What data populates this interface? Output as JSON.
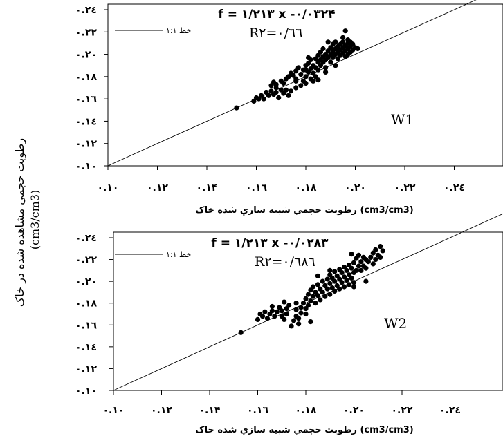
{
  "y_label": "رطوبت حجمي مشاهده شده در خاک",
  "y_unit": "(cm3/cm3)",
  "chart_data": [
    {
      "type": "scatter",
      "panel": "W1",
      "equation": "f = ۱/۲۱۳ x -۰/۰۳۲۴",
      "r2": "R۲=۰/٦٦",
      "legend": "خط ۱:۱",
      "xlabel": "رطوبت حجمي شبيه سازي شده خاک (cm3/cm3)",
      "x_ticks": [
        "۰.۱۰",
        "۰.۱۲",
        "۰.۱۴",
        "۰.۱٦",
        "۰.۱۸",
        "۰.۲۰",
        "۰.۲۲",
        "۰.۲٤"
      ],
      "y_ticks": [
        "۰.۱۰",
        "۰.۱۲",
        "۰.۱٤",
        "۰.۱٦",
        "۰.۱۸",
        "۰.۲۰",
        "۰.۲۲",
        "۰.۲٤"
      ],
      "xlim": [
        0.1,
        0.245
      ],
      "ylim": [
        0.1,
        0.245
      ],
      "one_to_one_line": true,
      "points": [
        [
          0.152,
          0.152
        ],
        [
          0.159,
          0.158
        ],
        [
          0.16,
          0.161
        ],
        [
          0.161,
          0.16
        ],
        [
          0.162,
          0.163
        ],
        [
          0.163,
          0.16
        ],
        [
          0.164,
          0.166
        ],
        [
          0.165,
          0.163
        ],
        [
          0.166,
          0.167
        ],
        [
          0.167,
          0.164
        ],
        [
          0.168,
          0.17
        ],
        [
          0.168,
          0.166
        ],
        [
          0.169,
          0.161
        ],
        [
          0.17,
          0.168
        ],
        [
          0.171,
          0.165
        ],
        [
          0.172,
          0.168
        ],
        [
          0.166,
          0.172
        ],
        [
          0.167,
          0.175
        ],
        [
          0.168,
          0.173
        ],
        [
          0.17,
          0.176
        ],
        [
          0.171,
          0.174
        ],
        [
          0.172,
          0.178
        ],
        [
          0.173,
          0.18
        ],
        [
          0.174,
          0.183
        ],
        [
          0.175,
          0.181
        ],
        [
          0.176,
          0.185
        ],
        [
          0.176,
          0.178
        ],
        [
          0.177,
          0.188
        ],
        [
          0.178,
          0.172
        ],
        [
          0.178,
          0.182
        ],
        [
          0.179,
          0.186
        ],
        [
          0.179,
          0.176
        ],
        [
          0.18,
          0.19
        ],
        [
          0.18,
          0.18
        ],
        [
          0.18,
          0.174
        ],
        [
          0.181,
          0.184
        ],
        [
          0.181,
          0.192
        ],
        [
          0.182,
          0.187
        ],
        [
          0.182,
          0.178
        ],
        [
          0.182,
          0.195
        ],
        [
          0.183,
          0.19
        ],
        [
          0.183,
          0.183
        ],
        [
          0.184,
          0.196
        ],
        [
          0.184,
          0.188
        ],
        [
          0.184,
          0.18
        ],
        [
          0.185,
          0.193
        ],
        [
          0.185,
          0.199
        ],
        [
          0.185,
          0.186
        ],
        [
          0.186,
          0.195
        ],
        [
          0.186,
          0.202
        ],
        [
          0.186,
          0.19
        ],
        [
          0.187,
          0.198
        ],
        [
          0.187,
          0.193
        ],
        [
          0.187,
          0.205
        ],
        [
          0.188,
          0.2
        ],
        [
          0.188,
          0.195
        ],
        [
          0.188,
          0.188
        ],
        [
          0.189,
          0.203
        ],
        [
          0.189,
          0.197
        ],
        [
          0.19,
          0.206
        ],
        [
          0.19,
          0.2
        ],
        [
          0.19,
          0.193
        ],
        [
          0.191,
          0.209
        ],
        [
          0.191,
          0.203
        ],
        [
          0.191,
          0.197
        ],
        [
          0.192,
          0.205
        ],
        [
          0.192,
          0.2
        ],
        [
          0.192,
          0.211
        ],
        [
          0.193,
          0.207
        ],
        [
          0.193,
          0.202
        ],
        [
          0.193,
          0.196
        ],
        [
          0.194,
          0.209
        ],
        [
          0.194,
          0.204
        ],
        [
          0.194,
          0.199
        ],
        [
          0.195,
          0.206
        ],
        [
          0.195,
          0.201
        ],
        [
          0.195,
          0.211
        ],
        [
          0.196,
          0.208
        ],
        [
          0.196,
          0.203
        ],
        [
          0.196,
          0.198
        ],
        [
          0.197,
          0.21
        ],
        [
          0.197,
          0.205
        ],
        [
          0.197,
          0.2
        ],
        [
          0.198,
          0.207
        ],
        [
          0.198,
          0.202
        ],
        [
          0.199,
          0.209
        ],
        [
          0.199,
          0.204
        ],
        [
          0.2,
          0.206
        ],
        [
          0.196,
          0.221
        ],
        [
          0.183,
          0.176
        ],
        [
          0.176,
          0.17
        ],
        [
          0.18,
          0.186
        ],
        [
          0.188,
          0.184
        ],
        [
          0.192,
          0.19
        ],
        [
          0.185,
          0.177
        ],
        [
          0.189,
          0.211
        ],
        [
          0.195,
          0.215
        ],
        [
          0.197,
          0.213
        ],
        [
          0.198,
          0.211
        ],
        [
          0.201,
          0.205
        ],
        [
          0.181,
          0.197
        ],
        [
          0.176,
          0.176
        ],
        [
          0.173,
          0.163
        ],
        [
          0.174,
          0.167
        ]
      ]
    },
    {
      "type": "scatter",
      "panel": "W2",
      "equation": "f = ۱/۲۱۳ x -۰/۰۲۸۳",
      "r2": "R۲=۰/٦۸٦",
      "legend": "خط ۱:۱",
      "xlabel": "رطوبت حجمي شبيه سازي شده خاک (cm3/cm3)",
      "x_ticks": [
        "۰.۱۰",
        "۰.۱۲",
        "۰.۱۴",
        "۰.۱٦",
        "۰.۱۸",
        "۰.۲۰",
        "۰.۲۲",
        "۰.۲٤"
      ],
      "y_ticks": [
        "۰.۱۰",
        "۰.۱۲",
        "۰.۱٤",
        "۰.۱٦",
        "۰.۱۸",
        "۰.۲۰",
        "۰.۲۲",
        "۰.۲٤"
      ],
      "xlim": [
        0.1,
        0.245
      ],
      "ylim": [
        0.1,
        0.245
      ],
      "one_to_one_line": true,
      "points": [
        [
          0.153,
          0.153
        ],
        [
          0.16,
          0.165
        ],
        [
          0.161,
          0.17
        ],
        [
          0.162,
          0.168
        ],
        [
          0.163,
          0.172
        ],
        [
          0.164,
          0.166
        ],
        [
          0.165,
          0.17
        ],
        [
          0.166,
          0.173
        ],
        [
          0.167,
          0.168
        ],
        [
          0.168,
          0.172
        ],
        [
          0.169,
          0.176
        ],
        [
          0.17,
          0.173
        ],
        [
          0.17,
          0.168
        ],
        [
          0.171,
          0.165
        ],
        [
          0.172,
          0.17
        ],
        [
          0.172,
          0.175
        ],
        [
          0.173,
          0.178
        ],
        [
          0.174,
          0.159
        ],
        [
          0.175,
          0.164
        ],
        [
          0.176,
          0.168
        ],
        [
          0.176,
          0.174
        ],
        [
          0.177,
          0.166
        ],
        [
          0.178,
          0.171
        ],
        [
          0.178,
          0.176
        ],
        [
          0.179,
          0.18
        ],
        [
          0.18,
          0.17
        ],
        [
          0.18,
          0.175
        ],
        [
          0.18,
          0.184
        ],
        [
          0.181,
          0.188
        ],
        [
          0.181,
          0.178
        ],
        [
          0.182,
          0.192
        ],
        [
          0.182,
          0.182
        ],
        [
          0.183,
          0.186
        ],
        [
          0.183,
          0.195
        ],
        [
          0.184,
          0.19
        ],
        [
          0.184,
          0.18
        ],
        [
          0.185,
          0.197
        ],
        [
          0.185,
          0.187
        ],
        [
          0.186,
          0.193
        ],
        [
          0.186,
          0.183
        ],
        [
          0.187,
          0.2
        ],
        [
          0.187,
          0.19
        ],
        [
          0.188,
          0.196
        ],
        [
          0.188,
          0.186
        ],
        [
          0.189,
          0.202
        ],
        [
          0.189,
          0.193
        ],
        [
          0.19,
          0.206
        ],
        [
          0.19,
          0.198
        ],
        [
          0.19,
          0.188
        ],
        [
          0.191,
          0.203
        ],
        [
          0.191,
          0.194
        ],
        [
          0.192,
          0.209
        ],
        [
          0.192,
          0.2
        ],
        [
          0.192,
          0.191
        ],
        [
          0.193,
          0.205
        ],
        [
          0.193,
          0.196
        ],
        [
          0.194,
          0.211
        ],
        [
          0.194,
          0.202
        ],
        [
          0.194,
          0.193
        ],
        [
          0.195,
          0.208
        ],
        [
          0.195,
          0.199
        ],
        [
          0.196,
          0.213
        ],
        [
          0.196,
          0.204
        ],
        [
          0.196,
          0.195
        ],
        [
          0.197,
          0.21
        ],
        [
          0.197,
          0.201
        ],
        [
          0.198,
          0.215
        ],
        [
          0.198,
          0.206
        ],
        [
          0.198,
          0.197
        ],
        [
          0.199,
          0.212
        ],
        [
          0.199,
          0.203
        ],
        [
          0.2,
          0.217
        ],
        [
          0.2,
          0.208
        ],
        [
          0.2,
          0.199
        ],
        [
          0.201,
          0.221
        ],
        [
          0.201,
          0.21
        ],
        [
          0.202,
          0.224
        ],
        [
          0.202,
          0.214
        ],
        [
          0.203,
          0.218
        ],
        [
          0.203,
          0.21
        ],
        [
          0.204,
          0.222
        ],
        [
          0.204,
          0.214
        ],
        [
          0.205,
          0.22
        ],
        [
          0.205,
          0.212
        ],
        [
          0.206,
          0.218
        ],
        [
          0.207,
          0.222
        ],
        [
          0.208,
          0.226
        ],
        [
          0.208,
          0.216
        ],
        [
          0.209,
          0.229
        ],
        [
          0.209,
          0.22
        ],
        [
          0.21,
          0.224
        ],
        [
          0.211,
          0.232
        ],
        [
          0.211,
          0.222
        ],
        [
          0.212,
          0.228
        ],
        [
          0.205,
          0.2
        ],
        [
          0.2,
          0.195
        ],
        [
          0.182,
          0.163
        ],
        [
          0.177,
          0.161
        ],
        [
          0.166,
          0.177
        ],
        [
          0.171,
          0.181
        ],
        [
          0.176,
          0.18
        ],
        [
          0.185,
          0.205
        ],
        [
          0.19,
          0.21
        ],
        [
          0.199,
          0.225
        ]
      ]
    }
  ]
}
